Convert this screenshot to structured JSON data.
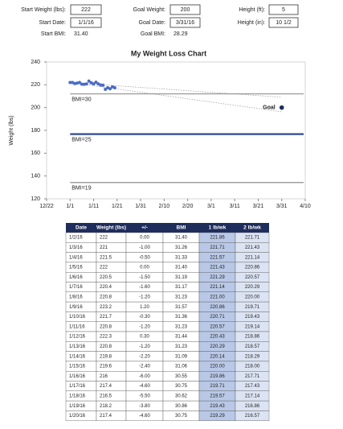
{
  "inputs": [
    [
      {
        "label": "Start Weight (lbs):",
        "value": "222"
      },
      {
        "label": "Goal Weight:",
        "value": "200"
      },
      {
        "label": "Height (ft):",
        "value": "5"
      }
    ],
    [
      {
        "label": "Start Date:",
        "value": "1/1/16"
      },
      {
        "label": "Goal Date:",
        "value": "3/31/16"
      },
      {
        "label": "Height (in):",
        "value": "10 1/2"
      }
    ],
    [
      {
        "label": "Start BMI:",
        "value": "31.40"
      },
      {
        "label": "Goal BMI:",
        "value": "28.29"
      }
    ]
  ],
  "chart_data": {
    "type": "scatter",
    "title": "My Weight Loss Chart",
    "y_label": "Weight (lbs)",
    "x": [
      10,
      11,
      12,
      13,
      14,
      15,
      16,
      17,
      18,
      19,
      20,
      21,
      22,
      23,
      24,
      25,
      26,
      27,
      28,
      29
    ],
    "values": [
      222,
      222,
      221,
      221.5,
      222,
      220.5,
      220.4,
      220.8,
      223.2,
      221.7,
      220.8,
      222.3,
      220.8,
      219.8,
      219.6,
      216,
      217.4,
      216.5,
      218.2,
      217.4
    ],
    "color": "#4a6cc4",
    "xlim": [
      0,
      110
    ],
    "xticks": [
      {
        "value": 0,
        "label": "12/22"
      },
      {
        "value": 10,
        "label": "1/1"
      },
      {
        "value": 20,
        "label": "1/11"
      },
      {
        "value": 30,
        "label": "1/21"
      },
      {
        "value": 40,
        "label": "1/31"
      },
      {
        "value": 50,
        "label": "2/10"
      },
      {
        "value": 60,
        "label": "2/20"
      },
      {
        "value": 70,
        "label": "3/1"
      },
      {
        "value": 80,
        "label": "3/11"
      },
      {
        "value": 90,
        "label": "3/21"
      },
      {
        "value": 100,
        "label": "3/31"
      },
      {
        "value": 110,
        "label": "4/10"
      }
    ],
    "ylim": [
      120,
      240
    ],
    "yticks": [
      120,
      140,
      160,
      180,
      200,
      220,
      240
    ],
    "reference_lines": [
      {
        "label": "BMI=30",
        "value": 212.1,
        "color": "#a0a0a0"
      },
      {
        "label": "BMI=25",
        "value": 176.75,
        "color": "#2e4a96"
      },
      {
        "label": "BMI=19",
        "value": 134.3,
        "color": "#a0a0a0"
      }
    ],
    "trend_lines": [
      {
        "x": [
          10,
          100
        ],
        "values": [
          222,
          209.1
        ]
      },
      {
        "x": [
          10,
          100
        ],
        "values": [
          222,
          196.3
        ]
      }
    ],
    "goal": {
      "label": "Goal",
      "x": 100,
      "value": 200,
      "color": "#1f2d5c"
    }
  },
  "table": {
    "header": [
      "Date",
      "Weight (lbs)",
      "+/-",
      "BMI",
      "1 lb/wk",
      "2 lb/wk"
    ],
    "rows": [
      [
        "1/2/16",
        "222",
        "0.00",
        "31.40",
        "221.86",
        "221.71"
      ],
      [
        "1/3/16",
        "221",
        "-1.00",
        "31.26",
        "221.71",
        "221.43"
      ],
      [
        "1/4/16",
        "221.5",
        "-0.50",
        "31.33",
        "221.57",
        "221.14"
      ],
      [
        "1/5/16",
        "222",
        "0.00",
        "31.40",
        "221.43",
        "220.86"
      ],
      [
        "1/6/16",
        "220.5",
        "-1.50",
        "31.19",
        "221.29",
        "220.57"
      ],
      [
        "1/7/16",
        "220.4",
        "-1.60",
        "31.17",
        "221.14",
        "220.29"
      ],
      [
        "1/8/16",
        "220.8",
        "-1.20",
        "31.23",
        "221.00",
        "220.00"
      ],
      [
        "1/9/16",
        "223.2",
        "1.20",
        "31.57",
        "220.86",
        "219.71"
      ],
      [
        "1/10/16",
        "221.7",
        "-0.30",
        "31.36",
        "220.71",
        "219.43"
      ],
      [
        "1/11/16",
        "220.8",
        "-1.20",
        "31.23",
        "220.57",
        "219.14"
      ],
      [
        "1/12/16",
        "222.3",
        "0.30",
        "31.44",
        "220.43",
        "218.86"
      ],
      [
        "1/13/16",
        "220.8",
        "-1.20",
        "31.23",
        "220.29",
        "218.57"
      ],
      [
        "1/14/16",
        "219.8",
        "-2.20",
        "31.09",
        "220.14",
        "218.29"
      ],
      [
        "1/15/16",
        "219.6",
        "-2.40",
        "31.06",
        "220.00",
        "218.00"
      ],
      [
        "1/16/16",
        "216",
        "-6.00",
        "30.55",
        "219.86",
        "217.71"
      ],
      [
        "1/17/16",
        "217.4",
        "-4.60",
        "30.75",
        "219.71",
        "217.43"
      ],
      [
        "1/18/16",
        "216.5",
        "-5.50",
        "30.62",
        "219.57",
        "217.14"
      ],
      [
        "1/19/16",
        "218.2",
        "-3.80",
        "30.86",
        "219.43",
        "216.86"
      ],
      [
        "1/20/16",
        "217.4",
        "-4.60",
        "30.75",
        "219.29",
        "216.57"
      ]
    ]
  }
}
